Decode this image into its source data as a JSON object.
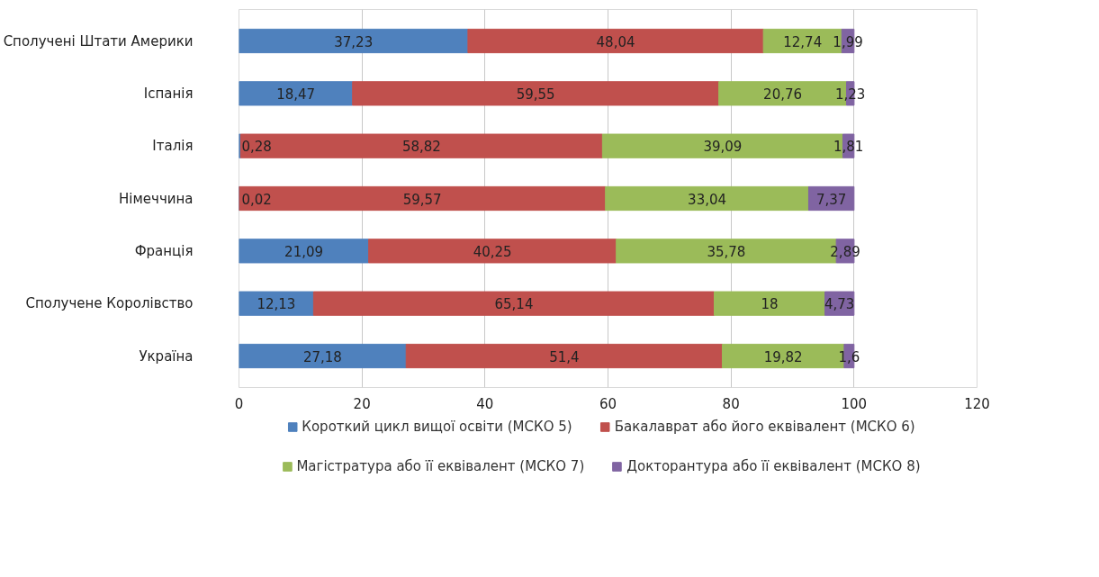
{
  "chart_data": {
    "type": "bar",
    "orientation": "horizontal",
    "stacked": true,
    "categories": [
      "Сполучені Штати Америки",
      "Іспанія",
      "Італія",
      "Німеччина",
      "Франція",
      "Сполучене Королівство",
      "Україна"
    ],
    "series": [
      {
        "name": "Короткий цикл вищої освіти (МСКО 5)",
        "color": "#4f81bd",
        "values": [
          37.23,
          18.47,
          0.28,
          0.02,
          21.09,
          12.13,
          27.18
        ],
        "value_labels": [
          "37,23",
          "18,47",
          "0,28",
          "0,02",
          "21,09",
          "12,13",
          "27,18"
        ]
      },
      {
        "name": "Бакалаврат або його еквівалент (МСКО 6)",
        "color": "#c0504d",
        "values": [
          48.04,
          59.55,
          58.82,
          59.57,
          40.25,
          65.14,
          51.4
        ],
        "value_labels": [
          "48,04",
          "59,55",
          "58,82",
          "59,57",
          "40,25",
          "65,14",
          "51,4"
        ]
      },
      {
        "name": "Магістратура або її еквівалент (МСКО 7)",
        "color": "#9bbb59",
        "values": [
          12.74,
          20.76,
          39.09,
          33.04,
          35.78,
          18,
          19.82
        ],
        "value_labels": [
          "12,74",
          "20,76",
          "39,09",
          "33,04",
          "35,78",
          "18",
          "19,82"
        ]
      },
      {
        "name": "Докторантура або її еквівалент (МСКО 8)",
        "color": "#8064a2",
        "values": [
          1.99,
          1.23,
          1.81,
          7.37,
          2.89,
          4.73,
          1.6
        ],
        "value_labels": [
          "1,99",
          "1,23",
          "1,81",
          "7,37",
          "2,89",
          "4,73",
          "1,6"
        ]
      }
    ],
    "xlim": [
      0,
      120
    ],
    "xticks": [
      0,
      20,
      40,
      60,
      80,
      100,
      120
    ],
    "grid": "x",
    "legend": "bottom"
  }
}
